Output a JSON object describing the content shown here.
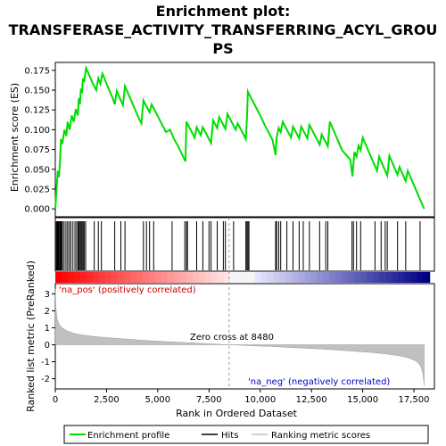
{
  "title_line1": "Enrichment plot:",
  "title_line2": "TRANSFERASE_ACTIVITY_TRANSFERRING_ACYL_GROU",
  "title_line3": "PS",
  "legend": {
    "enrichment": "Enrichment profile",
    "hits": "Hits",
    "ranking": "Ranking metric scores"
  },
  "colors": {
    "enrichment_line": "#00dd00",
    "hits": "#000000",
    "metric_fill": "#c0c0c0",
    "pos_label": "#cc0000",
    "neg_label": "#0000cc"
  },
  "chart_data": [
    {
      "type": "line",
      "name": "enrichment-score",
      "ylabel": "Enrichment score (ES)",
      "xlim": [
        0,
        18500
      ],
      "ylim": [
        -0.01,
        0.185
      ],
      "yticks": [
        "0.000",
        "0.025",
        "0.050",
        "0.075",
        "0.100",
        "0.125",
        "0.150",
        "0.175"
      ],
      "grid": false,
      "x": [
        0,
        60,
        120,
        180,
        230,
        280,
        340,
        450,
        540,
        600,
        700,
        800,
        900,
        1000,
        1100,
        1150,
        1200,
        1250,
        1300,
        1350,
        1400,
        1500,
        1600,
        1700,
        1800,
        1900,
        2000,
        2100,
        2200,
        2300,
        2400,
        2500,
        2600,
        2700,
        2800,
        2900,
        3000,
        3100,
        3200,
        3300,
        3400,
        3500,
        3600,
        3700,
        3800,
        3900,
        4000,
        4100,
        4200,
        4300,
        4400,
        4500,
        4600,
        4700,
        4800,
        4900,
        5000,
        5200,
        5400,
        5600,
        5800,
        6000,
        6200,
        6350,
        6400,
        6500,
        6600,
        6700,
        6800,
        6900,
        7000,
        7100,
        7200,
        7300,
        7400,
        7500,
        7600,
        7700,
        7800,
        7900,
        8000,
        8100,
        8200,
        8300,
        8400,
        8500,
        8600,
        8700,
        8800,
        8900,
        9000,
        9100,
        9200,
        9300,
        9350,
        9400,
        9500,
        9600,
        9700,
        9800,
        9900,
        10000,
        10200,
        10400,
        10600,
        10750,
        10800,
        10900,
        11000,
        11100,
        11200,
        11300,
        11400,
        11500,
        11600,
        11700,
        11800,
        11900,
        12000,
        12100,
        12200,
        12300,
        12400,
        12500,
        12600,
        12700,
        12800,
        12900,
        13000,
        13100,
        13200,
        13300,
        13400,
        13500,
        13600,
        13700,
        13800,
        13900,
        14000,
        14200,
        14400,
        14500,
        14600,
        14700,
        14800,
        14900,
        15000,
        15100,
        15200,
        15300,
        15400,
        15500,
        15600,
        15700,
        15800,
        15900,
        16000,
        16100,
        16200,
        16300,
        16400,
        16500,
        16600,
        16700,
        16800,
        16900,
        17000,
        17100,
        17200,
        17300,
        17400,
        17500,
        17600,
        17700,
        17800,
        17900,
        18000
      ],
      "values": [
        0.0,
        0.025,
        0.048,
        0.04,
        0.062,
        0.088,
        0.082,
        0.1,
        0.092,
        0.11,
        0.1,
        0.118,
        0.11,
        0.126,
        0.118,
        0.14,
        0.132,
        0.152,
        0.146,
        0.165,
        0.16,
        0.178,
        0.172,
        0.166,
        0.16,
        0.155,
        0.15,
        0.165,
        0.158,
        0.171,
        0.165,
        0.158,
        0.152,
        0.146,
        0.14,
        0.132,
        0.149,
        0.143,
        0.137,
        0.131,
        0.155,
        0.149,
        0.143,
        0.137,
        0.131,
        0.125,
        0.119,
        0.113,
        0.108,
        0.137,
        0.132,
        0.127,
        0.122,
        0.132,
        0.127,
        0.122,
        0.117,
        0.107,
        0.097,
        0.1,
        0.088,
        0.079,
        0.068,
        0.06,
        0.11,
        0.105,
        0.1,
        0.095,
        0.09,
        0.103,
        0.098,
        0.093,
        0.103,
        0.098,
        0.093,
        0.088,
        0.083,
        0.112,
        0.107,
        0.102,
        0.116,
        0.111,
        0.106,
        0.101,
        0.12,
        0.115,
        0.11,
        0.105,
        0.1,
        0.108,
        0.103,
        0.098,
        0.093,
        0.088,
        0.114,
        0.148,
        0.143,
        0.138,
        0.133,
        0.128,
        0.123,
        0.118,
        0.107,
        0.097,
        0.087,
        0.068,
        0.09,
        0.102,
        0.097,
        0.11,
        0.105,
        0.1,
        0.095,
        0.09,
        0.104,
        0.099,
        0.094,
        0.089,
        0.104,
        0.099,
        0.094,
        0.089,
        0.106,
        0.101,
        0.096,
        0.091,
        0.086,
        0.081,
        0.094,
        0.089,
        0.084,
        0.079,
        0.11,
        0.104,
        0.098,
        0.092,
        0.086,
        0.08,
        0.074,
        0.068,
        0.062,
        0.041,
        0.072,
        0.066,
        0.08,
        0.074,
        0.09,
        0.084,
        0.078,
        0.072,
        0.066,
        0.06,
        0.054,
        0.048,
        0.066,
        0.06,
        0.054,
        0.048,
        0.042,
        0.067,
        0.061,
        0.055,
        0.049,
        0.043,
        0.053,
        0.047,
        0.041,
        0.035,
        0.048,
        0.042,
        0.036,
        0.03,
        0.024,
        0.018,
        0.012,
        0.006,
        0.0
      ]
    },
    {
      "type": "scatter",
      "name": "hits",
      "xlim": [
        0,
        18500
      ],
      "x": [
        50,
        90,
        130,
        170,
        220,
        260,
        300,
        350,
        430,
        520,
        600,
        680,
        760,
        860,
        960,
        1040,
        1110,
        1160,
        1210,
        1260,
        1310,
        1360,
        1410,
        1480,
        1900,
        2100,
        2250,
        2900,
        3200,
        3400,
        4300,
        4450,
        4600,
        4800,
        5700,
        6320,
        6400,
        6450,
        6900,
        7200,
        7500,
        7600,
        7900,
        8200,
        8300,
        8700,
        9300,
        9350,
        9400,
        9450,
        10750,
        10800,
        10900,
        11000,
        11300,
        11600,
        11900,
        12100,
        12400,
        12900,
        13200,
        13300,
        14480,
        14550,
        14700,
        14900,
        15600,
        15900,
        16100,
        16200,
        16700,
        17100,
        17800
      ]
    },
    {
      "type": "area",
      "name": "ranked-list-metric",
      "xlabel": "Rank in Ordered Dataset",
      "ylabel": "Ranked list metric (PreRanked)",
      "xlim": [
        0,
        18500
      ],
      "ylim": [
        -2.6,
        3.6
      ],
      "xticks": [
        "0",
        "2,500",
        "5,000",
        "7,500",
        "10,000",
        "12,500",
        "15,000",
        "17,500"
      ],
      "yticks": [
        "-2",
        "-1",
        "0",
        "1",
        "2",
        "3"
      ],
      "x": [
        0,
        30,
        80,
        150,
        250,
        400,
        600,
        900,
        1300,
        1800,
        2500,
        3500,
        4500,
        5500,
        6500,
        7500,
        8480,
        9500,
        10500,
        11500,
        12500,
        13500,
        14500,
        15500,
        16200,
        16800,
        17200,
        17500,
        17700,
        17850,
        17950,
        18000
      ],
      "values": [
        3.3,
        2.2,
        1.6,
        1.3,
        1.1,
        0.95,
        0.8,
        0.68,
        0.58,
        0.5,
        0.42,
        0.33,
        0.25,
        0.18,
        0.12,
        0.06,
        0.0,
        -0.05,
        -0.1,
        -0.16,
        -0.22,
        -0.29,
        -0.37,
        -0.46,
        -0.55,
        -0.65,
        -0.76,
        -0.9,
        -1.05,
        -1.3,
        -1.8,
        -2.4
      ],
      "zero_cross_rank": 8480,
      "zero_cross_label": "Zero cross at 8480",
      "pos_label": "'na_pos' (positively correlated)",
      "neg_label": "'na_neg' (negatively correlated)"
    }
  ]
}
